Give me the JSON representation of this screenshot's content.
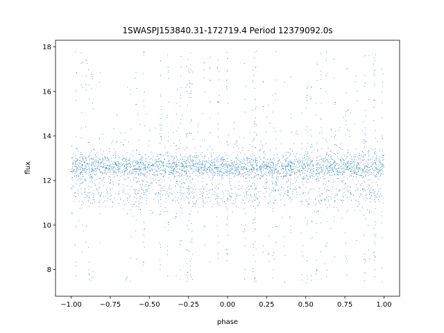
{
  "chart_data": {
    "type": "scatter",
    "title": "1SWASPJ153840.31-172719.4 Period 12379092.0s",
    "xlabel": "phase",
    "ylabel": "flux",
    "xlim": [
      -1.1,
      1.1
    ],
    "ylim": [
      6.8,
      18.3
    ],
    "x_ticks": [
      -1.0,
      -0.75,
      -0.5,
      -0.25,
      0.0,
      0.25,
      0.5,
      0.75,
      1.0
    ],
    "x_tick_labels": [
      "−1.00",
      "−0.75",
      "−0.50",
      "−0.25",
      "0.00",
      "0.25",
      "0.50",
      "0.75",
      "1.00"
    ],
    "y_ticks": [
      8,
      10,
      12,
      14,
      16,
      18
    ],
    "y_tick_labels": [
      "8",
      "10",
      "12",
      "14",
      "16",
      "18"
    ],
    "grid": false,
    "marker_color": "#1f77b4",
    "series": [
      {
        "x_range": [
          -1.0,
          1.0
        ],
        "baseline": 12.6,
        "secondary_level": 11.4,
        "core_spread": [
          11.2,
          13.4
        ],
        "outlier_range": [
          7.4,
          17.8
        ]
      }
    ]
  }
}
